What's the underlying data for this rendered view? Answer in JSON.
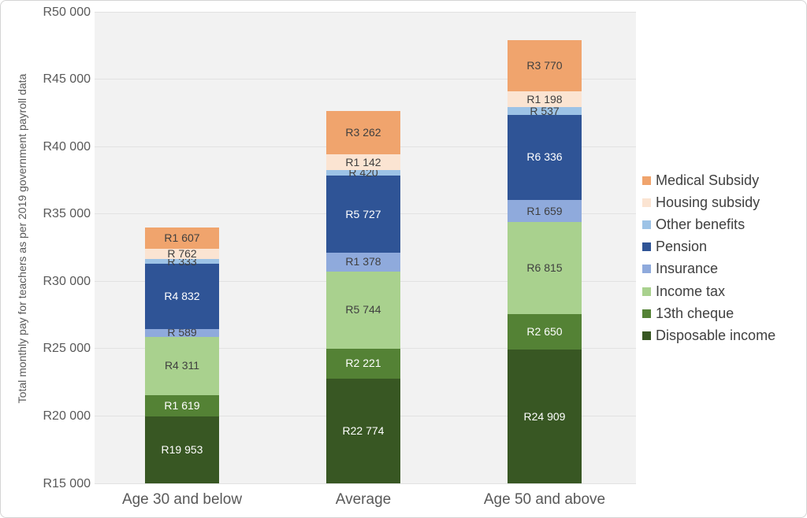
{
  "styles": {
    "plot_bg": "#f2f2f2",
    "gridline": "#e2e2e2",
    "axis_text": "#595959",
    "legend_text": "#404040",
    "frame_border": "#d4d4d4"
  },
  "chart_data": {
    "type": "bar",
    "stacked": true,
    "title": "",
    "xlabel": "",
    "ylabel": "Total monthly pay for teachers as per 2019 government payroll data",
    "ylim": [
      15000,
      50000
    ],
    "grid": true,
    "yticks": [
      {
        "value": 50000,
        "label": "R50 000"
      },
      {
        "value": 45000,
        "label": "R45 000"
      },
      {
        "value": 40000,
        "label": "R40 000"
      },
      {
        "value": 35000,
        "label": "R35 000"
      },
      {
        "value": 30000,
        "label": "R30 000"
      },
      {
        "value": 25000,
        "label": "R25 000"
      },
      {
        "value": 20000,
        "label": "R20 000"
      },
      {
        "value": 15000,
        "label": "R15 000"
      }
    ],
    "categories": [
      "Age 30 and below",
      "Average",
      "Age 50 and above"
    ],
    "series": [
      {
        "name": "Disposable income",
        "color": "#385723",
        "label_color": "#ffffff",
        "values": [
          19953,
          22774,
          24909
        ],
        "labels": [
          "R19 953",
          "R22 774",
          "R24 909"
        ]
      },
      {
        "name": "13th cheque",
        "color": "#548235",
        "label_color": "#ffffff",
        "values": [
          1619,
          2221,
          2650
        ],
        "labels": [
          "R1 619",
          "R2 221",
          "R2 650"
        ]
      },
      {
        "name": "Income tax",
        "color": "#a9d18e",
        "label_color": "#3f3f3f",
        "values": [
          4311,
          5744,
          6815
        ],
        "labels": [
          "R4 311",
          "R5 744",
          "R6 815"
        ]
      },
      {
        "name": "Insurance",
        "color": "#8faadc",
        "label_color": "#3f3f3f",
        "values": [
          589,
          1378,
          1659
        ],
        "labels": [
          "R 589",
          "R1 378",
          "R1 659"
        ]
      },
      {
        "name": "Pension",
        "color": "#2f5496",
        "label_color": "#ffffff",
        "values": [
          4832,
          5727,
          6336
        ],
        "labels": [
          "R4 832",
          "R5 727",
          "R6 336"
        ]
      },
      {
        "name": "Other benefits",
        "color": "#9dc3e6",
        "label_color": "#3f3f3f",
        "values": [
          333,
          420,
          537
        ],
        "labels": [
          "R 333",
          "R 420",
          "R 537"
        ]
      },
      {
        "name": "Housing subsidy",
        "color": "#fbe4d2",
        "label_color": "#3f3f3f",
        "values": [
          762,
          1142,
          1198
        ],
        "labels": [
          "R 762",
          "R1 142",
          "R1 198"
        ]
      },
      {
        "name": "Medical Subsidy",
        "color": "#f0a46d",
        "label_color": "#3f3f3f",
        "values": [
          1607,
          3262,
          3770
        ],
        "labels": [
          "R1 607",
          "R3 262",
          "R3 770"
        ]
      }
    ],
    "legend": {
      "position": "right",
      "items": [
        "Medical Subsidy",
        "Housing subsidy",
        "Other benefits",
        "Pension",
        "Insurance",
        "Income tax",
        "13th cheque",
        "Disposable income"
      ]
    }
  }
}
